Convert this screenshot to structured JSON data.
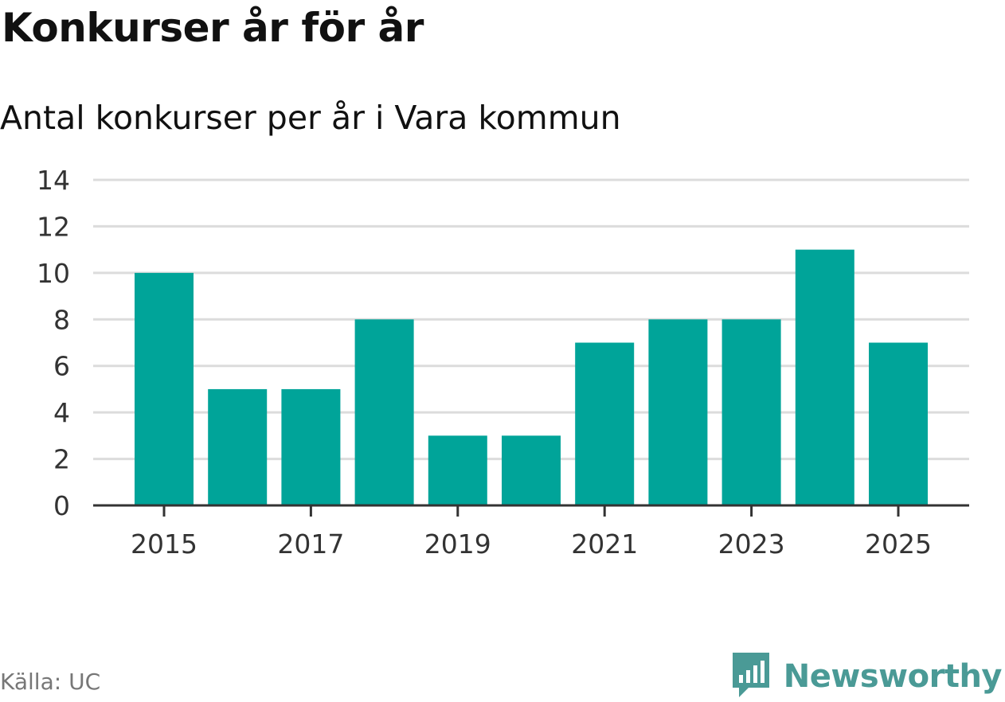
{
  "title": "Konkurser år för år",
  "subtitle": "Antal konkurser per år i Vara kommun",
  "source": "Källa: UC",
  "brand": {
    "name": "Newsworthy",
    "color": "#4a9a96",
    "logo_icon": "newsworthy-logo-icon"
  },
  "colors": {
    "bar": "#00a499",
    "grid": "#dcdcdc",
    "axis": "#333333"
  },
  "chart_data": {
    "type": "bar",
    "categories": [
      "2015",
      "2016",
      "2017",
      "2018",
      "2019",
      "2020",
      "2021",
      "2022",
      "2023",
      "2024",
      "2025"
    ],
    "values": [
      10,
      5,
      5,
      8,
      3,
      3,
      7,
      8,
      8,
      11,
      7
    ],
    "x_tick_labels": [
      "2015",
      "2017",
      "2019",
      "2021",
      "2023",
      "2025"
    ],
    "y_ticks": [
      0,
      2,
      4,
      6,
      8,
      10,
      12,
      14
    ],
    "ylim": [
      0,
      14
    ],
    "grid": true,
    "legend": "none",
    "title": "Konkurser år för år",
    "xlabel": "",
    "ylabel": ""
  }
}
